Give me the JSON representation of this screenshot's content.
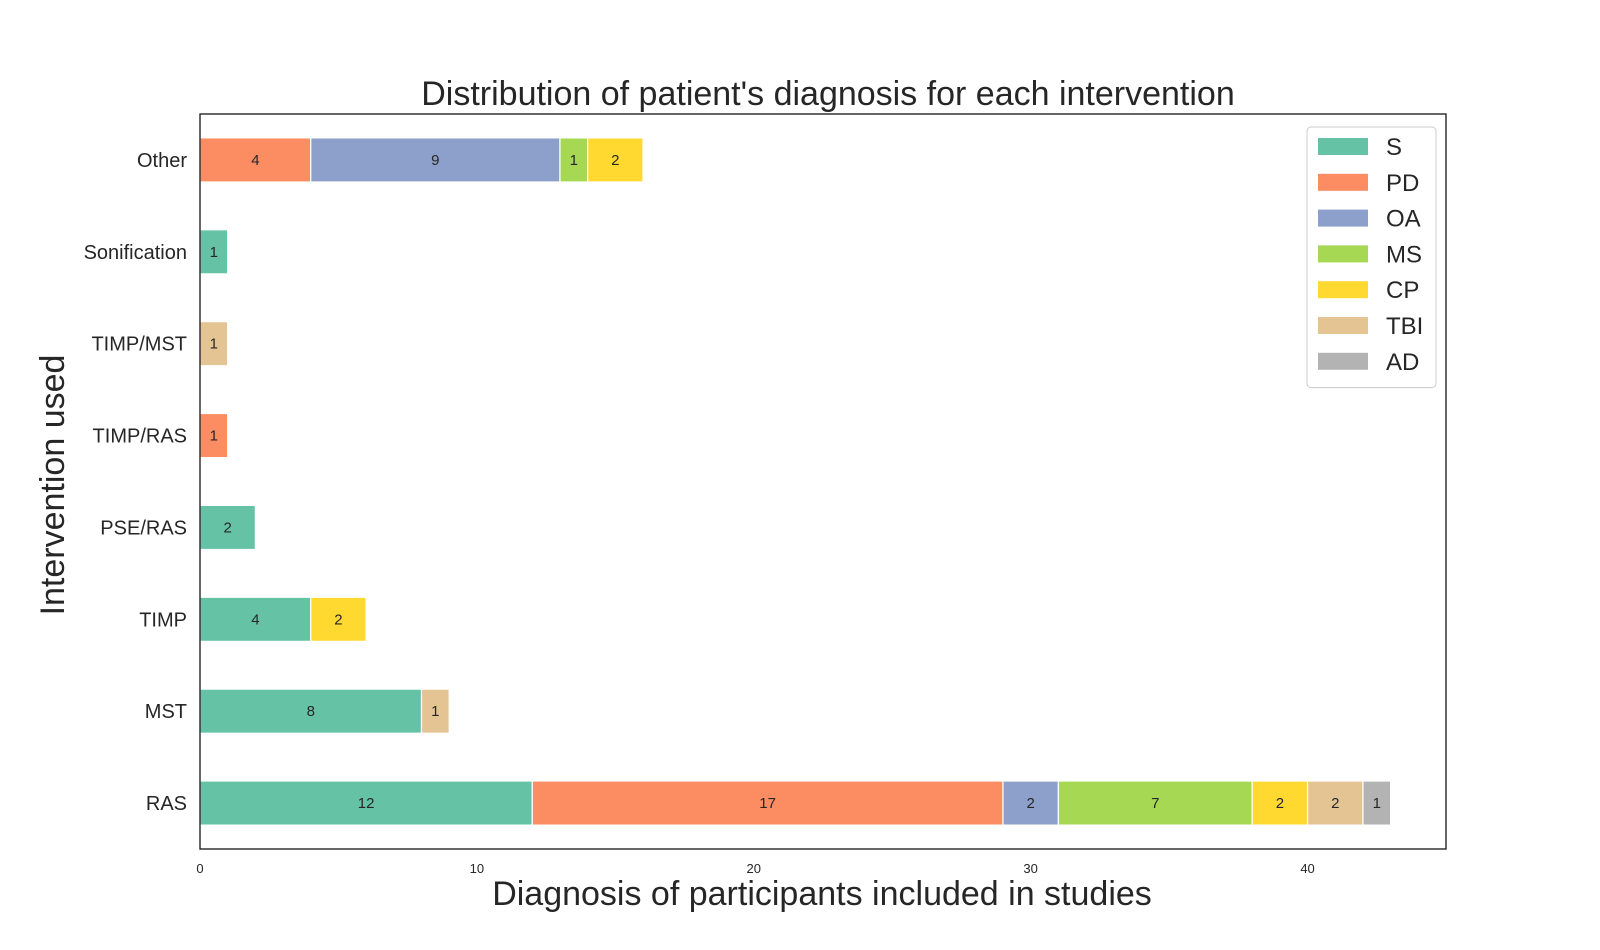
{
  "chart_data": {
    "type": "bar",
    "orientation": "horizontal",
    "stacked": true,
    "title": "Distribution of patient's diagnosis for each intervention",
    "xlabel": "Diagnosis of participants included in studies",
    "ylabel": "Intervention used",
    "categories": [
      "RAS",
      "MST",
      "TIMP",
      "PSE/RAS",
      "TIMP/RAS",
      "TIMP/MST",
      "Sonification",
      "Other"
    ],
    "xlim": [
      0,
      45
    ],
    "xticks": [
      0,
      10,
      20,
      30,
      40
    ],
    "grid": false,
    "legend_position": "top-right",
    "series": [
      {
        "name": "S",
        "color": "#66c2a5",
        "values": [
          12,
          8,
          4,
          2,
          0,
          0,
          1,
          0
        ]
      },
      {
        "name": "PD",
        "color": "#fc8d62",
        "values": [
          17,
          0,
          0,
          0,
          1,
          0,
          0,
          4
        ]
      },
      {
        "name": "OA",
        "color": "#8da0cb",
        "values": [
          2,
          0,
          0,
          0,
          0,
          0,
          0,
          9
        ]
      },
      {
        "name": "MS",
        "color": "#a6d854",
        "values": [
          7,
          0,
          0,
          0,
          0,
          0,
          0,
          1
        ]
      },
      {
        "name": "CP",
        "color": "#ffd92f",
        "values": [
          2,
          0,
          2,
          0,
          0,
          0,
          0,
          2
        ]
      },
      {
        "name": "TBI",
        "color": "#e5c494",
        "values": [
          2,
          1,
          0,
          0,
          0,
          1,
          0,
          0
        ]
      },
      {
        "name": "AD",
        "color": "#b3b3b3",
        "values": [
          1,
          0,
          0,
          0,
          0,
          0,
          0,
          0
        ]
      }
    ]
  }
}
